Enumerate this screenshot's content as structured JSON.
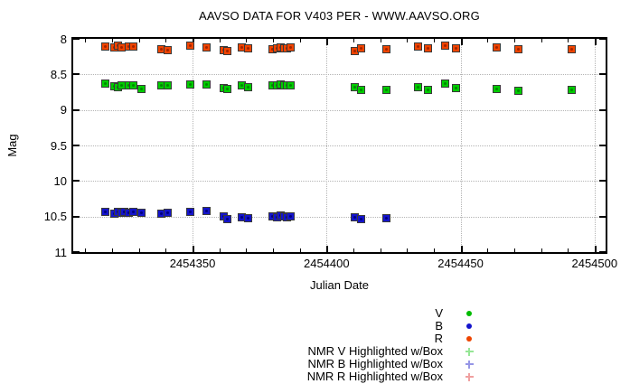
{
  "title": "AAVSO DATA FOR V403 PER - WWW.AAVSO.ORG",
  "axes": {
    "ylabel": "Mag",
    "xlabel": "Julian Date",
    "x_tick_labels": [
      "2454350",
      "2454400",
      "2454450",
      "2454500"
    ],
    "y_tick_labels": [
      "8",
      "8.5",
      "9",
      "9.5",
      "10",
      "10.5",
      "11"
    ]
  },
  "legend": {
    "entries": [
      {
        "label": "V",
        "marker": "dot",
        "color": "#00bb00"
      },
      {
        "label": "B",
        "marker": "dot",
        "color": "#1414cc"
      },
      {
        "label": "R",
        "marker": "dot",
        "color": "#ee4400"
      },
      {
        "label": "NMR V Highlighted w/Box",
        "marker": "plus",
        "color": "#96e696"
      },
      {
        "label": "NMR B Highlighted w/Box",
        "marker": "plus",
        "color": "#9696e6"
      },
      {
        "label": "NMR R Highlighted w/Box",
        "marker": "plus",
        "color": "#f0a0a0"
      }
    ]
  },
  "chart_data": {
    "type": "scatter",
    "title": "AAVSO DATA FOR V403 PER - WWW.AAVSO.ORG",
    "xlabel": "Julian Date",
    "ylabel": "Mag",
    "xlim": [
      2454305.5,
      2454504.1
    ],
    "ylim": [
      11,
      8
    ],
    "y_axis_reversed": true,
    "grid": true,
    "x_ticks": [
      2454350,
      2454400,
      2454450,
      2454500
    ],
    "x_minor_start": 2454310,
    "x_minor_step": 10,
    "x_minor_end": 2454500,
    "y_ticks": [
      8,
      8.5,
      9,
      9.5,
      10,
      10.5,
      11
    ],
    "marker_note": "each observation drawn as colored point highlighted with gray box (NMR Highlighted w/Box)",
    "series": [
      {
        "name": "R",
        "fill": "#f04400",
        "dot": "#a32300",
        "points": [
          [
            2454317.6,
            8.11
          ],
          [
            2454320.7,
            8.12
          ],
          [
            2454322.3,
            8.1
          ],
          [
            2454323.4,
            8.12
          ],
          [
            2454326.1,
            8.11
          ],
          [
            2454327.8,
            8.11
          ],
          [
            2454338.5,
            8.15
          ],
          [
            2454340.9,
            8.16
          ],
          [
            2454349.0,
            8.1
          ],
          [
            2454355.4,
            8.12
          ],
          [
            2454361.5,
            8.16
          ],
          [
            2454363.1,
            8.17
          ],
          [
            2454368.5,
            8.12
          ],
          [
            2454370.9,
            8.13
          ],
          [
            2454380.0,
            8.14
          ],
          [
            2454381.7,
            8.13
          ],
          [
            2454383.0,
            8.12
          ],
          [
            2454384.1,
            8.13
          ],
          [
            2454385.4,
            8.13
          ],
          [
            2454386.7,
            8.12
          ],
          [
            2454410.7,
            8.17
          ],
          [
            2454413.0,
            8.13
          ],
          [
            2454422.2,
            8.15
          ],
          [
            2454434.0,
            8.11
          ],
          [
            2454437.7,
            8.13
          ],
          [
            2454444.1,
            8.09
          ],
          [
            2454448.4,
            8.13
          ],
          [
            2454463.6,
            8.12
          ],
          [
            2454471.4,
            8.14
          ],
          [
            2454491.3,
            8.15
          ]
        ]
      },
      {
        "name": "V",
        "fill": "#00cc00",
        "dot": "#008800",
        "points": [
          [
            2454317.6,
            8.63
          ],
          [
            2454320.7,
            8.67
          ],
          [
            2454322.3,
            8.68
          ],
          [
            2454323.4,
            8.66
          ],
          [
            2454326.1,
            8.65
          ],
          [
            2454327.8,
            8.66
          ],
          [
            2454330.8,
            8.71
          ],
          [
            2454338.5,
            8.65
          ],
          [
            2454340.9,
            8.66
          ],
          [
            2454349.0,
            8.64
          ],
          [
            2454355.4,
            8.64
          ],
          [
            2454361.5,
            8.69
          ],
          [
            2454363.1,
            8.71
          ],
          [
            2454368.5,
            8.66
          ],
          [
            2454370.9,
            8.68
          ],
          [
            2454380.0,
            8.66
          ],
          [
            2454381.7,
            8.65
          ],
          [
            2454383.0,
            8.64
          ],
          [
            2454384.1,
            8.66
          ],
          [
            2454385.4,
            8.65
          ],
          [
            2454386.7,
            8.66
          ],
          [
            2454410.7,
            8.68
          ],
          [
            2454413.0,
            8.72
          ],
          [
            2454422.2,
            8.72
          ],
          [
            2454434.0,
            8.68
          ],
          [
            2454437.7,
            8.72
          ],
          [
            2454444.1,
            8.63
          ],
          [
            2454448.4,
            8.69
          ],
          [
            2454463.6,
            8.71
          ],
          [
            2454471.4,
            8.73
          ],
          [
            2454491.3,
            8.72
          ]
        ]
      },
      {
        "name": "B",
        "fill": "#1414cc",
        "dot": "#000080",
        "points": [
          [
            2454317.6,
            10.44
          ],
          [
            2454320.7,
            10.46
          ],
          [
            2454322.3,
            10.43
          ],
          [
            2454323.4,
            10.45
          ],
          [
            2454324.7,
            10.44
          ],
          [
            2454326.1,
            10.45
          ],
          [
            2454327.8,
            10.44
          ],
          [
            2454330.8,
            10.45
          ],
          [
            2454338.5,
            10.46
          ],
          [
            2454340.9,
            10.45
          ],
          [
            2454349.0,
            10.44
          ],
          [
            2454355.4,
            10.42
          ],
          [
            2454361.5,
            10.5
          ],
          [
            2454363.1,
            10.53
          ],
          [
            2454368.5,
            10.51
          ],
          [
            2454370.9,
            10.52
          ],
          [
            2454380.0,
            10.5
          ],
          [
            2454381.7,
            10.51
          ],
          [
            2454383.0,
            10.49
          ],
          [
            2454384.1,
            10.5
          ],
          [
            2454385.4,
            10.51
          ],
          [
            2454386.7,
            10.5
          ],
          [
            2454410.7,
            10.51
          ],
          [
            2454413.0,
            10.53
          ],
          [
            2454422.2,
            10.52
          ]
        ]
      }
    ]
  }
}
